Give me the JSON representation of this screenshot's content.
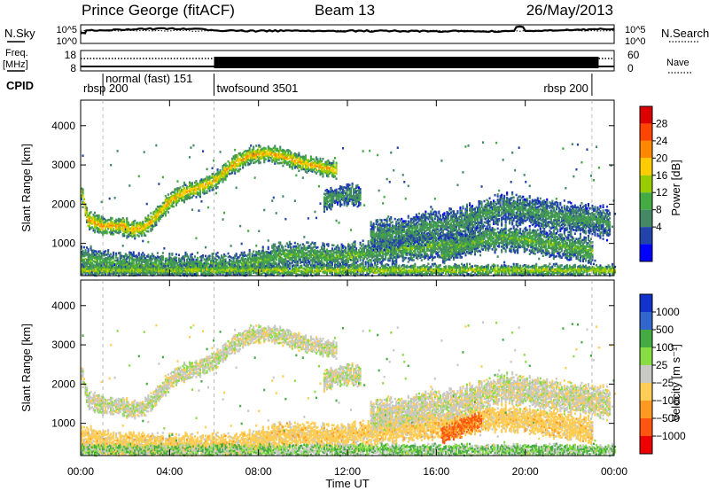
{
  "header": {
    "station": "Prince George (fitACF)",
    "beam": "Beam 13",
    "date": "26/May/2013"
  },
  "noise_panel": {
    "left_label": "N.Sky",
    "right_label": "N.Search",
    "left_ticks": [
      "10^5",
      "10^0"
    ],
    "right_ticks": [
      "10^5",
      "10^0"
    ],
    "sky_level": [
      [
        0.0,
        0.45
      ],
      [
        0.2,
        0.45
      ],
      [
        0.25,
        0.3
      ],
      [
        1,
        0.3
      ],
      [
        2,
        0.27
      ],
      [
        3,
        0.22
      ],
      [
        4,
        0.2
      ],
      [
        5,
        0.22
      ],
      [
        6,
        0.3
      ],
      [
        7,
        0.33
      ],
      [
        8,
        0.33
      ],
      [
        10,
        0.32
      ],
      [
        12,
        0.33
      ],
      [
        14,
        0.33
      ],
      [
        16,
        0.34
      ],
      [
        18,
        0.36
      ],
      [
        19.5,
        0.33
      ],
      [
        19.6,
        0.12
      ],
      [
        19.9,
        0.12
      ],
      [
        20.0,
        0.33
      ],
      [
        21,
        0.31
      ],
      [
        22,
        0.29
      ],
      [
        23,
        0.24
      ],
      [
        24,
        0.22
      ]
    ]
  },
  "freq_panel": {
    "left_label_1": "Freq.",
    "left_label_2": "[MHz]",
    "right_label": "Nave",
    "left_ticks": [
      "18",
      "8"
    ],
    "right_ticks": [
      "60",
      "0"
    ],
    "block_start": 6.0,
    "block_end": 23.3
  },
  "cpid": {
    "label": "CPID",
    "segments": [
      {
        "label": "rbsp 200",
        "start": 0.0,
        "row": "low"
      },
      {
        "label": "normal (fast) 151",
        "start": 1.0,
        "row": "high"
      },
      {
        "label": "twofsound 3501",
        "start": 6.0,
        "row": "low"
      },
      {
        "label": "rbsp 200",
        "start": 23.0,
        "row": "low",
        "align": "end"
      }
    ],
    "boundaries": [
      1.0,
      6.0,
      23.0
    ]
  },
  "power_colorbar": {
    "label": "Power [dB]",
    "ticks": [
      "28",
      "24",
      "20",
      "16",
      "12",
      "8",
      "4"
    ],
    "colors": [
      "#dd0000",
      "#ff4400",
      "#ff8800",
      "#ffcc00",
      "#99cc00",
      "#44aa44",
      "#448866",
      "#2244aa",
      "#0000ff"
    ]
  },
  "velocity_colorbar": {
    "label": "Velocity [m s⁻¹]",
    "ticks": [
      "1000",
      "500",
      "100",
      "25",
      "−25",
      "−100",
      "−500",
      "−1000"
    ],
    "colors": [
      "#1133cc",
      "#3366cc",
      "#44aa44",
      "#88dd44",
      "#c8c8c4",
      "#ffcc55",
      "#ff9922",
      "#ff5511",
      "#ee0000"
    ]
  },
  "chart_data": {
    "type": "heatmap",
    "x_label": "Time UT",
    "y_label": "Slant Range [km]",
    "x_ticks": [
      "00:00",
      "04:00",
      "08:00",
      "12:00",
      "16:00",
      "20:00",
      "00:00"
    ],
    "x_tick_hours": [
      0,
      4,
      8,
      12,
      16,
      20,
      24
    ],
    "y_ticks": [
      1000,
      2000,
      3000,
      4000
    ],
    "xlim": [
      0,
      24
    ],
    "ylim": [
      180,
      4650
    ],
    "echo_bands": [
      {
        "name": "main",
        "points": [
          [
            0.0,
            2300
          ],
          [
            0.3,
            1600
          ],
          [
            1.0,
            1450
          ],
          [
            1.8,
            1450
          ],
          [
            2.2,
            1350
          ],
          [
            2.8,
            1400
          ],
          [
            3.3,
            1650
          ],
          [
            4.0,
            2100
          ],
          [
            4.6,
            2300
          ],
          [
            5.2,
            2400
          ],
          [
            6.0,
            2600
          ],
          [
            6.8,
            3000
          ],
          [
            7.6,
            3250
          ],
          [
            8.4,
            3300
          ],
          [
            9.2,
            3200
          ],
          [
            10.0,
            3050
          ],
          [
            10.8,
            2950
          ],
          [
            11.5,
            2850
          ]
        ],
        "width": 180,
        "power_core": 20,
        "power_edge": 8,
        "velocity": 0
      },
      {
        "name": "low_range",
        "points": [
          [
            0.0,
            600
          ],
          [
            0.5,
            560
          ],
          [
            1.0,
            500
          ],
          [
            2.0,
            450
          ],
          [
            3.0,
            450
          ],
          [
            4.0,
            420
          ],
          [
            5.0,
            400
          ],
          [
            6.0,
            420
          ],
          [
            7.0,
            450
          ],
          [
            8.0,
            550
          ],
          [
            9.0,
            700
          ],
          [
            10.0,
            750
          ],
          [
            11.0,
            650
          ],
          [
            12.0,
            700
          ],
          [
            13.0,
            750
          ],
          [
            14.0,
            850
          ],
          [
            15.0,
            900
          ],
          [
            16.0,
            950
          ],
          [
            17.0,
            1000
          ],
          [
            18.0,
            1100
          ],
          [
            19.0,
            1150
          ],
          [
            20.0,
            1100
          ],
          [
            21.0,
            1000
          ],
          [
            22.0,
            900
          ],
          [
            23.0,
            800
          ]
        ],
        "width": 260,
        "power_core": 12,
        "power_edge": 6,
        "velocity": -60
      },
      {
        "name": "ground",
        "points": [
          [
            0.0,
            320
          ],
          [
            24.0,
            320
          ]
        ],
        "width": 120,
        "power_core": 16,
        "power_edge": 6,
        "velocity": 60
      },
      {
        "name": "late_high",
        "points": [
          [
            13.0,
            1200
          ],
          [
            14.0,
            1250
          ],
          [
            15.0,
            1350
          ],
          [
            16.0,
            1450
          ],
          [
            17.0,
            1500
          ],
          [
            18.0,
            1700
          ],
          [
            19.0,
            1900
          ],
          [
            20.0,
            1850
          ],
          [
            21.0,
            1700
          ],
          [
            22.0,
            1650
          ],
          [
            23.0,
            1600
          ],
          [
            23.8,
            1500
          ]
        ],
        "width": 320,
        "power_core": 10,
        "power_edge": 5,
        "velocity": -5
      },
      {
        "name": "mid_patch",
        "points": [
          [
            10.9,
            2100
          ],
          [
            11.5,
            2200
          ],
          [
            12.0,
            2250
          ],
          [
            12.6,
            2200
          ]
        ],
        "width": 220,
        "power_core": 10,
        "power_edge": 5,
        "velocity": 0
      },
      {
        "name": "east_arc",
        "points": [
          [
            16.2,
            700
          ],
          [
            16.8,
            850
          ],
          [
            17.4,
            1000
          ],
          [
            18.0,
            1050
          ]
        ],
        "width": 200,
        "power_core": 12,
        "power_edge": 6,
        "velocity": -400
      }
    ]
  }
}
